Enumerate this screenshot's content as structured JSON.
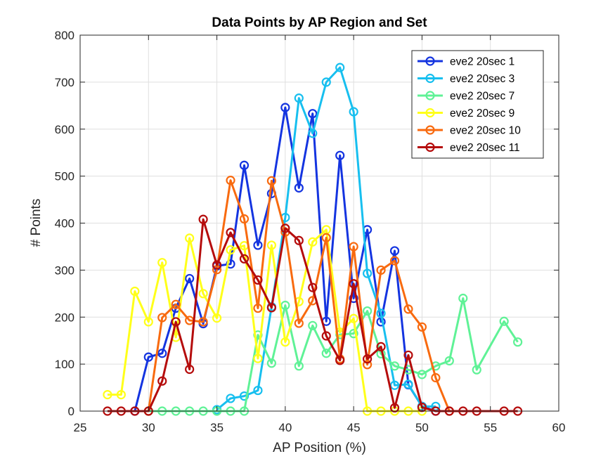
{
  "chart_data": {
    "type": "line",
    "title": "Data Points by AP Region and Set",
    "xlabel": "AP Position (%)",
    "ylabel": "# Points",
    "xlim": [
      25,
      60
    ],
    "ylim": [
      0,
      800
    ],
    "xticks": [
      "25",
      "30",
      "35",
      "40",
      "45",
      "50",
      "55",
      "60"
    ],
    "yticks": [
      "0",
      "100",
      "200",
      "300",
      "400",
      "500",
      "600",
      "700",
      "800"
    ],
    "grid": true,
    "legend_position": "top-right",
    "series": [
      {
        "name": "eve2 20sec 1",
        "color": "#1434e0",
        "x": [
          29,
          30,
          31,
          32,
          33,
          34,
          35,
          36,
          37,
          38,
          39,
          40,
          41,
          42,
          43,
          44,
          45,
          46,
          47,
          48,
          49,
          50,
          51
        ],
        "y": [
          0,
          115,
          123,
          219,
          282,
          186,
          309,
          313,
          523,
          353,
          463,
          646,
          475,
          633,
          191,
          544,
          240,
          386,
          190,
          341,
          56,
          10,
          0
        ]
      },
      {
        "name": "eve2 20sec 3",
        "color": "#17bfef",
        "x": [
          35,
          36,
          37,
          38,
          39,
          40,
          41,
          42,
          43,
          44,
          45,
          46,
          47,
          48,
          49,
          50,
          51
        ],
        "y": [
          3,
          27,
          32,
          44,
          222,
          412,
          666,
          591,
          700,
          731,
          637,
          293,
          208,
          55,
          57,
          10,
          10
        ]
      },
      {
        "name": "eve2 20sec 7",
        "color": "#5ff296",
        "x": [
          30,
          31,
          32,
          33,
          34,
          35,
          36,
          37,
          38,
          39,
          40,
          41,
          42,
          43,
          44,
          45,
          46,
          47,
          48,
          49,
          50,
          51,
          52,
          53,
          54,
          56,
          57
        ],
        "y": [
          0,
          0,
          0,
          0,
          0,
          0,
          0,
          0,
          162,
          102,
          225,
          96,
          182,
          123,
          163,
          165,
          213,
          122,
          96,
          88,
          78,
          96,
          107,
          240,
          88,
          191,
          147
        ]
      },
      {
        "name": "eve2 20sec 9",
        "color": "#ffff1a",
        "x": [
          27,
          28,
          29,
          30,
          31,
          32,
          33,
          34,
          35,
          36,
          37,
          38,
          39,
          40,
          41,
          42,
          43,
          44,
          45,
          46,
          47,
          48,
          49,
          50
        ],
        "y": [
          35,
          35,
          255,
          190,
          316,
          157,
          368,
          250,
          198,
          343,
          352,
          112,
          353,
          147,
          233,
          360,
          386,
          168,
          197,
          0,
          0,
          0,
          0,
          0
        ]
      },
      {
        "name": "eve2 20sec 10",
        "color": "#f86a0f",
        "x": [
          30,
          31,
          32,
          33,
          34,
          35,
          36,
          37,
          38,
          39,
          40,
          41,
          42,
          43,
          44,
          45,
          46,
          47,
          48,
          49,
          50,
          51,
          52
        ],
        "y": [
          0,
          199,
          227,
          193,
          190,
          301,
          491,
          409,
          219,
          490,
          381,
          187,
          235,
          369,
          111,
          350,
          99,
          300,
          320,
          217,
          179,
          71,
          0
        ]
      },
      {
        "name": "eve2 20sec 11",
        "color": "#b50c0c",
        "x": [
          27,
          28,
          29,
          30,
          31,
          32,
          33,
          34,
          35,
          36,
          37,
          38,
          39,
          40,
          41,
          42,
          43,
          44,
          45,
          46,
          47,
          48,
          49,
          50,
          51,
          52,
          53,
          54,
          56,
          57
        ],
        "y": [
          0,
          0,
          0,
          0,
          64,
          190,
          89,
          408,
          311,
          380,
          324,
          279,
          220,
          389,
          363,
          263,
          160,
          108,
          271,
          111,
          137,
          7,
          119,
          8,
          0,
          0,
          0,
          0,
          0,
          0
        ]
      }
    ]
  }
}
